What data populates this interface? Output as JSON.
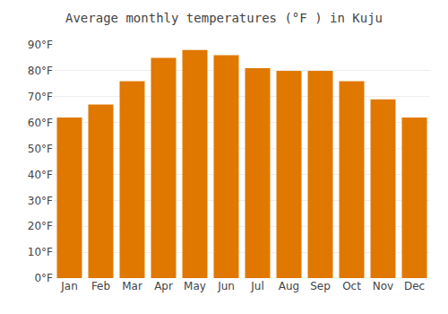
{
  "chart_data": {
    "type": "bar",
    "title": "Average monthly temperatures (°F ) in Kuju",
    "categories": [
      "Jan",
      "Feb",
      "Mar",
      "Apr",
      "May",
      "Jun",
      "Jul",
      "Aug",
      "Sep",
      "Oct",
      "Nov",
      "Dec"
    ],
    "values": [
      62,
      67,
      76,
      85,
      88,
      86,
      81,
      80,
      80,
      76,
      69,
      62
    ],
    "color": "#E07800",
    "ylim": [
      0,
      90
    ],
    "yticks": [
      {
        "value": 0,
        "label": "0°F"
      },
      {
        "value": 10,
        "label": "10°F"
      },
      {
        "value": 20,
        "label": "20°F"
      },
      {
        "value": 30,
        "label": "30°F"
      },
      {
        "value": 40,
        "label": "40°F"
      },
      {
        "value": 50,
        "label": "50°F"
      },
      {
        "value": 60,
        "label": "60°F"
      },
      {
        "value": 70,
        "label": "70°F"
      },
      {
        "value": 80,
        "label": "80°F"
      },
      {
        "value": 90,
        "label": "90°F"
      }
    ],
    "grid": true
  }
}
